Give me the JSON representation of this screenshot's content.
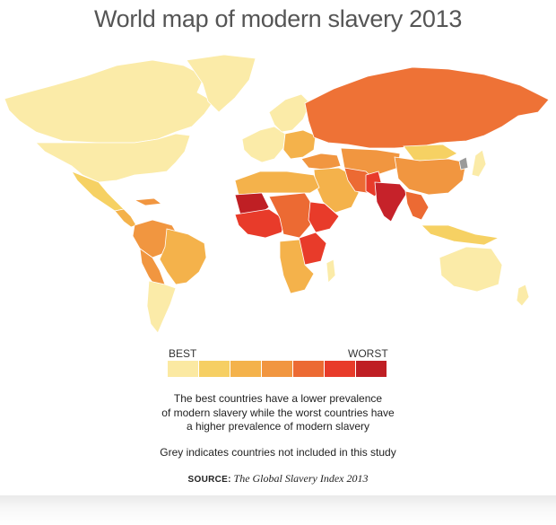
{
  "title": "World map of modern slavery 2013",
  "legend": {
    "best_label": "BEST",
    "worst_label": "WORST",
    "scale_colors": [
      "#fbe9a2",
      "#f6cf63",
      "#f4b24b",
      "#f19640",
      "#ec6a33",
      "#e83b2a",
      "#bf1f24"
    ]
  },
  "caption": {
    "line1": "The best countries have a lower prevalence",
    "line2": "of modern slavery while the worst countries have",
    "line3": "a higher prevalence of modern slavery"
  },
  "note": "Grey indicates countries not included in this study",
  "source": {
    "label": "SOURCE:",
    "text": "The Global Slavery Index 2013"
  },
  "colors": {
    "not_included": "#9a9a9a"
  }
}
